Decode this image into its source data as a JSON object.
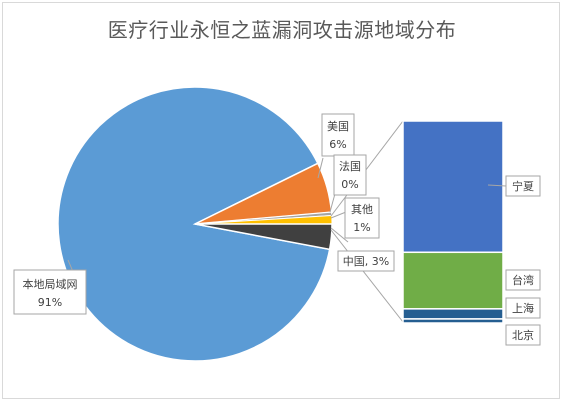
{
  "chart_data": {
    "type": "pie",
    "title": "医疗行业永恒之蓝漏洞攻击源地域分布",
    "pie": {
      "slices": [
        {
          "name": "本地局域网",
          "value_label": "91%",
          "value": 91,
          "color": "#5b9bd5"
        },
        {
          "name": "美国",
          "value_label": "6%",
          "value": 6,
          "color": "#ed7d31"
        },
        {
          "name": "法国",
          "value_label": "0%",
          "value": 0.4,
          "color": "#a5a5a5"
        },
        {
          "name": "其他",
          "value_label": "1%",
          "value": 1,
          "color": "#ffc000"
        },
        {
          "name": "中国",
          "value_label": "3%",
          "value": 3,
          "color": "#404040"
        }
      ]
    },
    "breakdown": {
      "of": "中国",
      "segments": [
        {
          "name": "宁夏",
          "value": 65,
          "color": "#4472c4"
        },
        {
          "name": "台湾",
          "value": 28,
          "color": "#70ad47"
        },
        {
          "name": "上海",
          "value": 5,
          "color": "#255e91"
        },
        {
          "name": "北京",
          "value": 2,
          "color": "#255e91"
        }
      ]
    }
  },
  "labels": {
    "local": {
      "name": "本地局域网",
      "pct": "91%"
    },
    "usa": {
      "name": "美国",
      "pct": "6%"
    },
    "france": {
      "name": "法国",
      "pct": "0%"
    },
    "other": {
      "name": "其他",
      "pct": "1%"
    },
    "china": "中国, 3%",
    "ningxia": "宁夏",
    "taiwan": "台湾",
    "shanghai": "上海",
    "beijing": "北京"
  }
}
